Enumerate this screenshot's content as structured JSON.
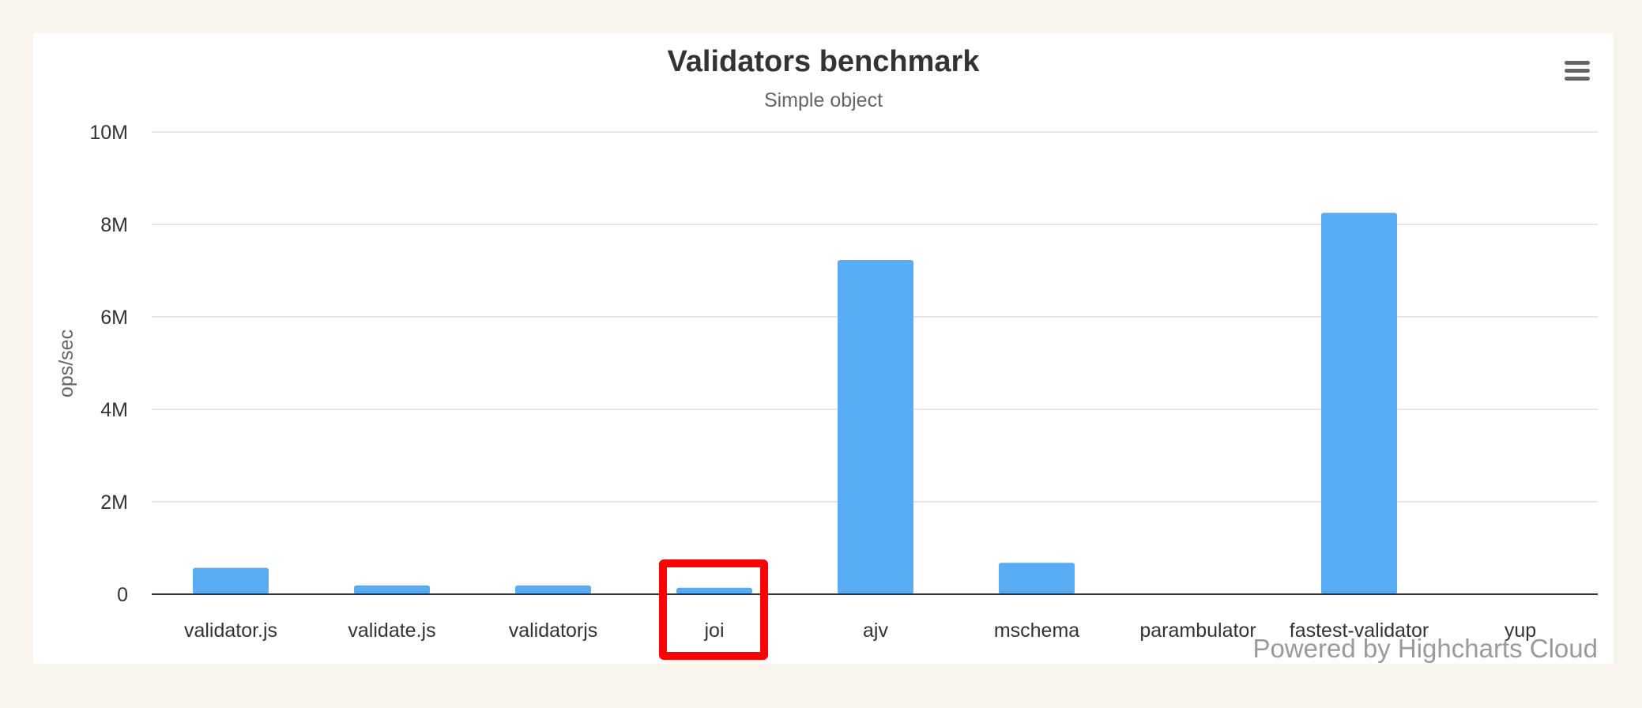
{
  "chart_data": {
    "type": "bar",
    "title": "Validators benchmark",
    "subtitle": "Simple object",
    "xlabel": "",
    "ylabel": "ops/sec",
    "ylim": [
      0,
      10000000
    ],
    "yticks": [
      0,
      2000000,
      4000000,
      6000000,
      8000000,
      10000000
    ],
    "ytick_labels": [
      "0",
      "2M",
      "4M",
      "6M",
      "8M",
      "10M"
    ],
    "categories": [
      "validator.js",
      "validate.js",
      "validatorjs",
      "joi",
      "ajv",
      "mschema",
      "parambulator",
      "fastest-validator",
      "yup"
    ],
    "values": [
      570000,
      190000,
      190000,
      140000,
      7230000,
      680000,
      0,
      8250000,
      0
    ],
    "bar_color": "#58acf4",
    "grid": true,
    "legend": "none",
    "highlighted_category": "joi",
    "highlight_color": "#ff0000"
  },
  "credit": "Powered by Highcharts Cloud",
  "menu_icon": "hamburger-menu-icon"
}
